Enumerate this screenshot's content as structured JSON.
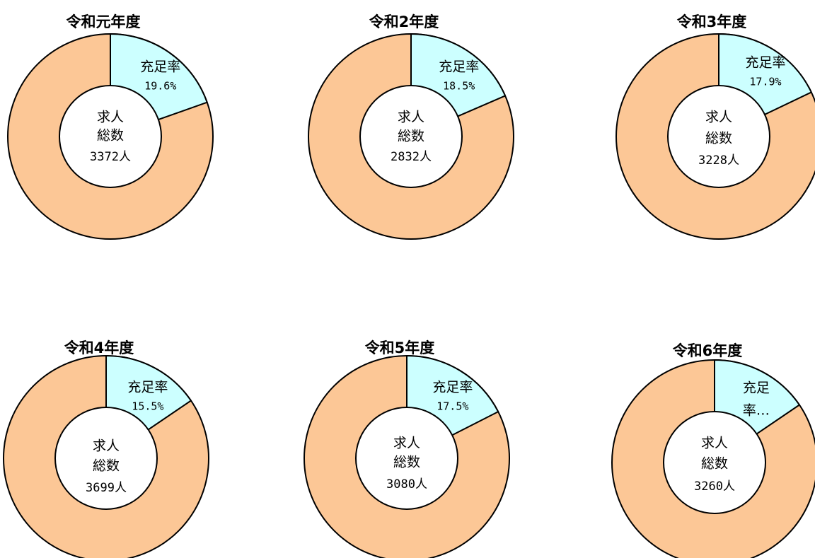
{
  "colors": {
    "fill_rate": "#ccffff",
    "unfilled": "#fcc796",
    "center": "#ffffff",
    "stroke": "#000000"
  },
  "chart_data": [
    {
      "type": "pie",
      "title": "令和元年度",
      "segment_label": "充足率",
      "segment_value_text": "19.6%",
      "fill_rate": 19.6,
      "center_label_1": "求人",
      "center_label_2": "総数",
      "center_value_text": "3372人",
      "total": 3372
    },
    {
      "type": "pie",
      "title": "令和2年度",
      "segment_label": "充足率",
      "segment_value_text": "18.5%",
      "fill_rate": 18.5,
      "center_label_1": "求人",
      "center_label_2": "総数",
      "center_value_text": "2832人",
      "total": 2832
    },
    {
      "type": "pie",
      "title": "令和3年度",
      "segment_label": "充足率",
      "segment_value_text": "17.9%",
      "fill_rate": 17.9,
      "center_label_1": "求人",
      "center_label_2": "総数",
      "center_value_text": "3228人",
      "total": 3228
    },
    {
      "type": "pie",
      "title": "令和4年度",
      "segment_label": "充足率",
      "segment_value_text": "15.5%",
      "fill_rate": 15.5,
      "center_label_1": "求人",
      "center_label_2": "総数",
      "center_value_text": "3699人",
      "total": 3699
    },
    {
      "type": "pie",
      "title": "令和5年度",
      "segment_label": "充足率",
      "segment_value_text": "17.5%",
      "fill_rate": 17.5,
      "center_label_1": "求人",
      "center_label_2": "総数",
      "center_value_text": "3080人",
      "total": 3080
    },
    {
      "type": "pie",
      "title": "令和6年度",
      "segment_label": "充足",
      "segment_value_text": "率…",
      "fill_rate": 15.5,
      "center_label_1": "求人",
      "center_label_2": "総数",
      "center_value_text": "3260人",
      "total": 3260
    }
  ]
}
